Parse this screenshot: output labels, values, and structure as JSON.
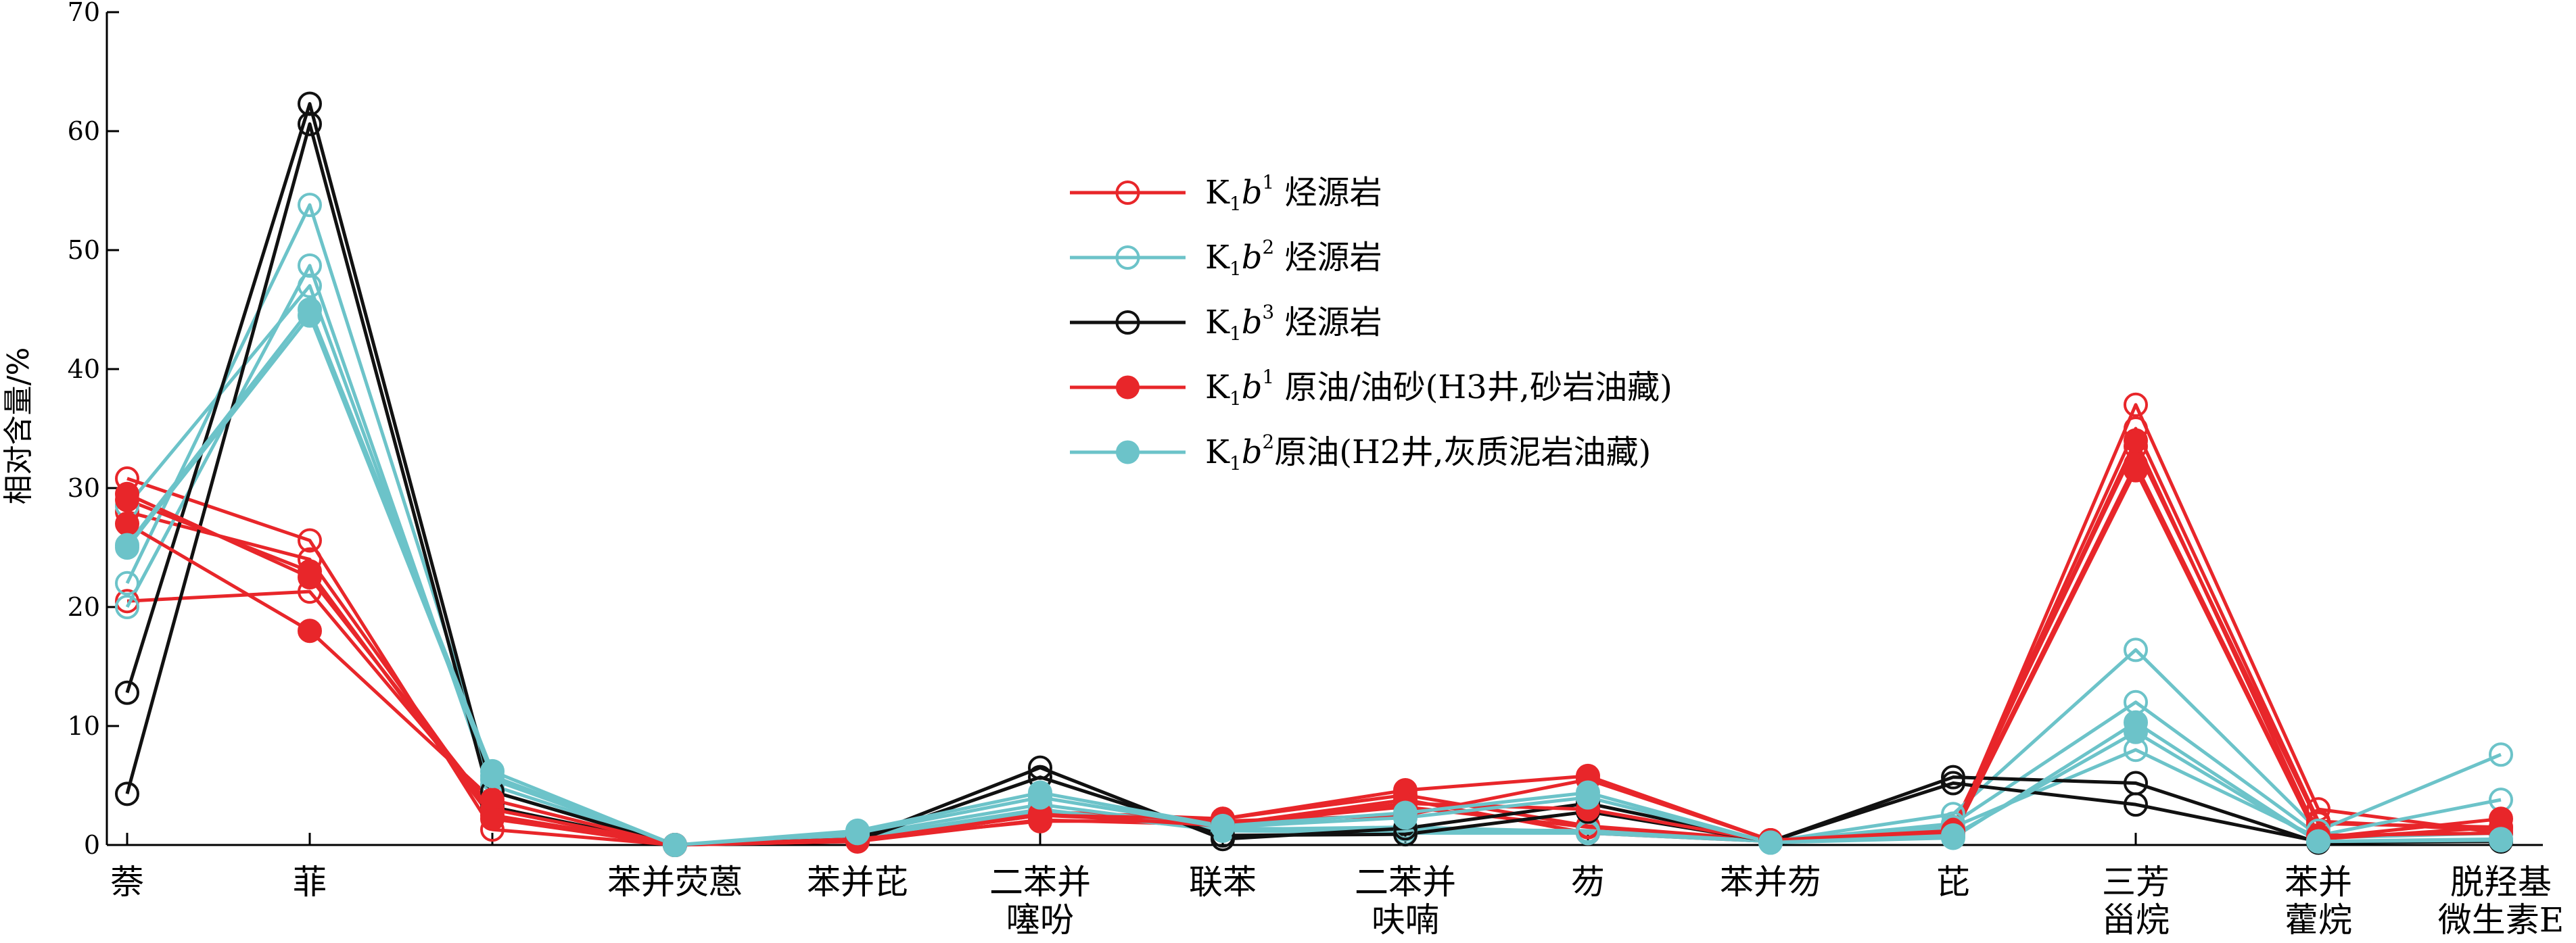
{
  "chart_data": {
    "type": "line",
    "ylabel": "相对含量/%",
    "ylim": [
      0,
      70
    ],
    "yticks": [
      0,
      10,
      20,
      30,
      40,
      50,
      60,
      70
    ],
    "grid": false,
    "legend_position": "top-center",
    "categories": [
      [
        "萘"
      ],
      [
        "菲"
      ],
      [
        ""
      ],
      [
        "苯并荧蒽"
      ],
      [
        "苯并芘"
      ],
      [
        "二苯并",
        "噻吩"
      ],
      [
        "联苯"
      ],
      [
        "二苯并",
        "呋喃"
      ],
      [
        "芴"
      ],
      [
        "苯并芴"
      ],
      [
        "芘"
      ],
      [
        "三芳",
        "甾烷"
      ],
      [
        "苯并",
        "藿烷"
      ],
      [
        "脱羟基",
        "微生素E"
      ]
    ],
    "legend": [
      {
        "label_main": "K",
        "label_sub": "1",
        "label_italic": "b",
        "label_sup": "1",
        "label_rest": " 烃源岩",
        "color": "#e8262a",
        "marker": "open"
      },
      {
        "label_main": "K",
        "label_sub": "1",
        "label_italic": "b",
        "label_sup": "2",
        "label_rest": " 烃源岩",
        "color": "#6cc3c9",
        "marker": "open"
      },
      {
        "label_main": "K",
        "label_sub": "1",
        "label_italic": "b",
        "label_sup": "3",
        "label_rest": " 烃源岩",
        "color": "#111111",
        "marker": "open"
      },
      {
        "label_main": "K",
        "label_sub": "1",
        "label_italic": "b",
        "label_sup": "1",
        "label_rest": " 原油/油砂(H3井,砂岩油藏)",
        "color": "#e8262a",
        "marker": "filled"
      },
      {
        "label_main": "K",
        "label_sub": "1",
        "label_italic": "b",
        "label_sup": "2",
        "label_rest": "原油(H2井,灰质泥岩油藏)",
        "color": "#6cc3c9",
        "marker": "filled"
      }
    ],
    "series": [
      {
        "group": 0,
        "color": "#e8262a",
        "marker": "open",
        "values": [
          30.8,
          25.6,
          1.3,
          0,
          0.3,
          2.1,
          1.7,
          3.8,
          1.0,
          0.3,
          1.0,
          37.0,
          3.0,
          1.0
        ]
      },
      {
        "group": 0,
        "color": "#e8262a",
        "marker": "open",
        "values": [
          28.0,
          24.0,
          2.5,
          0,
          0.4,
          2.5,
          1.8,
          3.2,
          1.5,
          0.4,
          1.3,
          35.0,
          2.0,
          1.2
        ]
      },
      {
        "group": 0,
        "color": "#e8262a",
        "marker": "open",
        "values": [
          20.5,
          21.3,
          3.0,
          0,
          0.5,
          2.8,
          2.2,
          4.2,
          1.6,
          0.4,
          1.5,
          33.5,
          1.8,
          1.5
        ]
      },
      {
        "group": 1,
        "color": "#6cc3c9",
        "marker": "open",
        "values": [
          22.0,
          53.8,
          5.5,
          0,
          0.8,
          3.4,
          1.4,
          1.3,
          1.2,
          0.3,
          2.6,
          16.4,
          1.2,
          7.6
        ]
      },
      {
        "group": 1,
        "color": "#6cc3c9",
        "marker": "open",
        "values": [
          20.0,
          48.7,
          4.5,
          0,
          0.6,
          3.0,
          1.2,
          1.0,
          1.0,
          0.3,
          1.8,
          12.0,
          0.8,
          3.8
        ]
      },
      {
        "group": 1,
        "color": "#6cc3c9",
        "marker": "open",
        "values": [
          28.5,
          47.0,
          5.0,
          0,
          0.7,
          2.8,
          1.3,
          1.5,
          1.1,
          0.3,
          1.5,
          8.0,
          0.6,
          1.0
        ]
      },
      {
        "group": 2,
        "color": "#111111",
        "marker": "open",
        "values": [
          12.8,
          62.3,
          4.5,
          0,
          0.5,
          6.5,
          0.5,
          1.4,
          3.5,
          0.3,
          5.7,
          5.2,
          0.2,
          0.3
        ]
      },
      {
        "group": 2,
        "color": "#111111",
        "marker": "open",
        "values": [
          4.3,
          60.6,
          3.2,
          0,
          0.4,
          5.7,
          0.8,
          0.9,
          2.8,
          0.3,
          5.2,
          3.4,
          0.3,
          0.3
        ]
      },
      {
        "group": 3,
        "color": "#e8262a",
        "marker": "filled",
        "values": [
          29.5,
          22.5,
          3.0,
          0,
          0.4,
          2.5,
          2.2,
          4.6,
          5.8,
          0.4,
          1.0,
          32.0,
          0.6,
          2.2
        ]
      },
      {
        "group": 3,
        "color": "#e8262a",
        "marker": "filled",
        "values": [
          27.0,
          18.0,
          3.8,
          0,
          0.5,
          2.0,
          2.0,
          2.5,
          5.5,
          0.4,
          1.2,
          34.0,
          0.8,
          1.0
        ]
      },
      {
        "group": 3,
        "color": "#e8262a",
        "marker": "filled",
        "values": [
          29.0,
          23.0,
          2.2,
          0,
          0.3,
          2.6,
          1.6,
          3.5,
          3.0,
          0.3,
          0.8,
          31.5,
          0.5,
          1.5
        ]
      },
      {
        "group": 4,
        "color": "#6cc3c9",
        "marker": "filled",
        "values": [
          25.2,
          45.0,
          6.2,
          0,
          1.2,
          4.4,
          1.6,
          2.7,
          4.4,
          0.2,
          0.6,
          10.3,
          0.3,
          0.4
        ]
      },
      {
        "group": 4,
        "color": "#6cc3c9",
        "marker": "filled",
        "values": [
          25.0,
          44.5,
          5.8,
          0,
          1.0,
          4.0,
          1.5,
          2.3,
          4.0,
          0.2,
          0.8,
          9.5,
          0.3,
          0.5
        ]
      }
    ]
  }
}
